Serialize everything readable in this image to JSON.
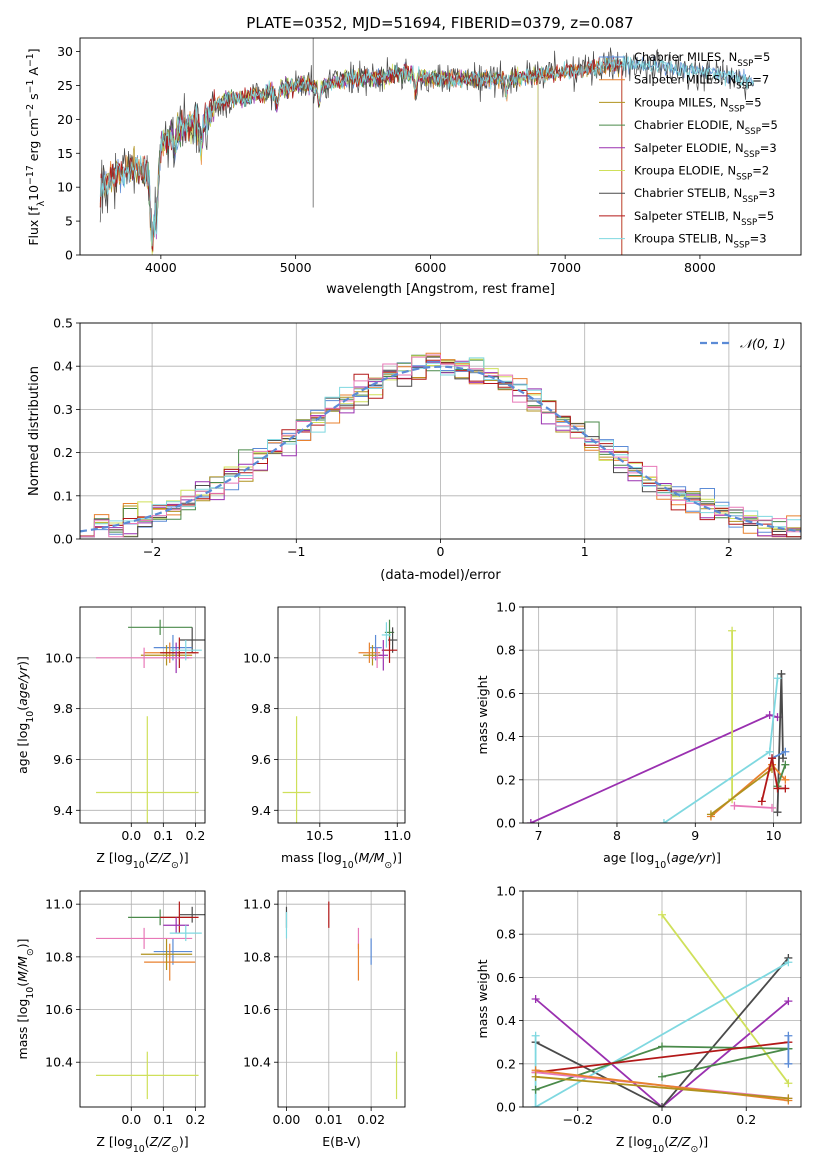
{
  "figure": {
    "title": "PLATE=0352, MJD=51694, FIBERID=0379, z=0.087"
  },
  "colors": {
    "chabrier_miles": "#5b8bd6",
    "salpeter_miles": "#e8812f",
    "kroupa_miles": "#b0921e",
    "chabrier_elodie": "#4a8a4a",
    "salpeter_elodie": "#9a30b0",
    "kroupa_elodie": "#cfe05a",
    "chabrier_stelib": "#4a4a4a",
    "salpeter_stelib": "#b31818",
    "kroupa_stelib": "#7fd8e0",
    "pink": "#e878b8",
    "gaussian": "#5b8bd6"
  },
  "chart_data": [
    {
      "id": "spectrum",
      "type": "line",
      "title": "PLATE=0352, MJD=51694, FIBERID=0379, z=0.087",
      "xlabel": "wavelength [Angstrom, rest frame]",
      "ylabel": "Flux [f_λ 10^-17 erg cm^-2 s^-1 A^-1]",
      "xlim": [
        3400,
        8750
      ],
      "ylim": [
        0,
        32
      ],
      "xticks": [
        4000,
        5000,
        6000,
        7000,
        8000
      ],
      "yticks": [
        0,
        5,
        10,
        15,
        20,
        25,
        30
      ],
      "grid": false,
      "legend_position": "right",
      "continuum_anchors": {
        "x": [
          3500,
          3600,
          3700,
          3800,
          3900,
          3950,
          4000,
          4100,
          4200,
          4300,
          4400,
          4500,
          4600,
          4800,
          5000,
          5200,
          5400,
          5600,
          5800,
          6000,
          6200,
          6400,
          6600,
          6800,
          7000,
          7200,
          7400,
          7600,
          7800,
          8000,
          8200,
          8400
        ],
        "y": [
          9,
          11,
          12,
          13,
          12,
          6,
          16,
          18,
          19,
          19,
          22,
          23,
          23,
          24,
          25,
          25,
          26,
          26,
          27,
          26,
          26,
          26,
          26,
          26.5,
          27,
          27.5,
          28,
          28,
          27.5,
          27,
          26.5,
          25.5
        ]
      },
      "legend": [
        {
          "label": "Chabrier MILES",
          "nssp": "5",
          "color_key": "chabrier_miles"
        },
        {
          "label": "Salpeter MILES",
          "nssp": "7",
          "color_key": "salpeter_miles"
        },
        {
          "label": "Kroupa MILES",
          "nssp": "5",
          "color_key": "kroupa_miles"
        },
        {
          "label": "Chabrier ELODIE",
          "nssp": "5",
          "color_key": "chabrier_elodie"
        },
        {
          "label": "Salpeter ELODIE",
          "nssp": "3",
          "color_key": "salpeter_elodie"
        },
        {
          "label": "Kroupa ELODIE",
          "nssp": "2",
          "color_key": "kroupa_elodie"
        },
        {
          "label": "Chabrier STELIB",
          "nssp": "3",
          "color_key": "chabrier_stelib"
        },
        {
          "label": "Salpeter STELIB",
          "nssp": "5",
          "color_key": "salpeter_stelib"
        },
        {
          "label": "Kroupa STELIB",
          "nssp": "3",
          "color_key": "kroupa_stelib"
        }
      ],
      "model_ranges": [
        {
          "color_key": "chabrier_miles",
          "x": [
            3550,
            8400
          ]
        },
        {
          "color_key": "salpeter_miles",
          "x": [
            3550,
            7420
          ]
        },
        {
          "color_key": "kroupa_miles",
          "x": [
            3550,
            7420
          ]
        },
        {
          "color_key": "chabrier_elodie",
          "x": [
            3900,
            6800
          ]
        },
        {
          "color_key": "salpeter_elodie",
          "x": [
            3900,
            6800
          ]
        },
        {
          "color_key": "kroupa_elodie",
          "x": [
            3900,
            6800
          ]
        },
        {
          "color_key": "chabrier_stelib",
          "x": [
            3550,
            8400
          ]
        },
        {
          "color_key": "salpeter_stelib",
          "x": [
            3550,
            7420
          ]
        },
        {
          "color_key": "kroupa_stelib",
          "x": [
            3550,
            8400
          ]
        }
      ]
    },
    {
      "id": "residuals",
      "type": "area",
      "xlabel": "(data-model)/error",
      "ylabel": "Normed distribution",
      "xlim": [
        -2.5,
        2.5
      ],
      "ylim": [
        0,
        0.5
      ],
      "xticks": [
        -2,
        -1,
        0,
        1,
        2
      ],
      "yticks": [
        0.0,
        0.1,
        0.2,
        0.3,
        0.4,
        0.5
      ],
      "grid": true,
      "legend": [
        {
          "label": "𝒩(0, 1)",
          "color_key": "gaussian",
          "style": "dashed"
        }
      ],
      "bin_width": 0.1,
      "series_colors": [
        "chabrier_miles",
        "salpeter_miles",
        "kroupa_miles",
        "chabrier_elodie",
        "salpeter_elodie",
        "kroupa_elodie",
        "chabrier_stelib",
        "salpeter_stelib",
        "kroupa_stelib",
        "pink"
      ]
    },
    {
      "id": "age_vs_Z",
      "type": "scatter",
      "xlabel": "Z [log10(Z/Z⊙)]",
      "ylabel": "age [log10(age/yr)]",
      "xlim": [
        -0.16,
        0.23
      ],
      "ylim": [
        9.35,
        10.2
      ],
      "xticks": [
        0.0,
        0.1,
        0.2
      ],
      "yticks": [
        9.4,
        9.6,
        9.8,
        10.0
      ],
      "grid": true,
      "points": [
        {
          "x": 0.05,
          "y": 9.47,
          "xerr": 0.16,
          "yerr": 0.3,
          "color_key": "kroupa_elodie"
        },
        {
          "x": 0.09,
          "y": 10.12,
          "xerr": 0.1,
          "yerr": 0.03,
          "color_key": "chabrier_elodie"
        },
        {
          "x": 0.19,
          "y": 10.07,
          "xerr": 0.04,
          "yerr": 0.05,
          "color_key": "chabrier_stelib"
        },
        {
          "x": 0.13,
          "y": 10.04,
          "xerr": 0.06,
          "yerr": 0.05,
          "color_key": "chabrier_miles"
        },
        {
          "x": 0.12,
          "y": 10.02,
          "xerr": 0.08,
          "yerr": 0.04,
          "color_key": "salpeter_miles"
        },
        {
          "x": 0.11,
          "y": 10.01,
          "xerr": 0.08,
          "yerr": 0.04,
          "color_key": "kroupa_miles"
        },
        {
          "x": 0.15,
          "y": 10.02,
          "xerr": 0.06,
          "yerr": 0.06,
          "color_key": "salpeter_stelib"
        },
        {
          "x": 0.14,
          "y": 10.0,
          "xerr": 0.04,
          "yerr": 0.06,
          "color_key": "salpeter_elodie"
        },
        {
          "x": 0.04,
          "y": 10.0,
          "xerr": 0.15,
          "yerr": 0.04,
          "color_key": "pink"
        },
        {
          "x": 0.17,
          "y": 10.03,
          "xerr": 0.05,
          "yerr": 0.04,
          "color_key": "kroupa_stelib"
        }
      ]
    },
    {
      "id": "age_vs_mass",
      "type": "scatter",
      "xlabel": "mass [log10(M/M⊙)]",
      "ylabel": "",
      "xlim": [
        10.23,
        11.05
      ],
      "ylim": [
        9.35,
        10.2
      ],
      "xticks": [
        10.5,
        11.0
      ],
      "yticks": [
        9.4,
        9.6,
        9.8,
        10.0
      ],
      "grid": true,
      "points": [
        {
          "x": 10.35,
          "y": 9.47,
          "xerr": 0.09,
          "yerr": 0.3,
          "color_key": "kroupa_elodie"
        },
        {
          "x": 10.95,
          "y": 10.1,
          "xerr": 0.03,
          "yerr": 0.05,
          "color_key": "chabrier_elodie"
        },
        {
          "x": 10.97,
          "y": 10.07,
          "xerr": 0.03,
          "yerr": 0.05,
          "color_key": "chabrier_stelib"
        },
        {
          "x": 10.86,
          "y": 10.04,
          "xerr": 0.04,
          "yerr": 0.05,
          "color_key": "chabrier_miles"
        },
        {
          "x": 10.82,
          "y": 10.02,
          "xerr": 0.07,
          "yerr": 0.04,
          "color_key": "salpeter_miles"
        },
        {
          "x": 10.84,
          "y": 10.01,
          "xerr": 0.06,
          "yerr": 0.04,
          "color_key": "kroupa_miles"
        },
        {
          "x": 10.95,
          "y": 10.03,
          "xerr": 0.05,
          "yerr": 0.05,
          "color_key": "salpeter_stelib"
        },
        {
          "x": 10.91,
          "y": 10.01,
          "xerr": 0.03,
          "yerr": 0.06,
          "color_key": "salpeter_elodie"
        },
        {
          "x": 10.87,
          "y": 10.0,
          "xerr": 0.04,
          "yerr": 0.04,
          "color_key": "pink"
        },
        {
          "x": 10.93,
          "y": 10.09,
          "xerr": 0.03,
          "yerr": 0.05,
          "color_key": "kroupa_stelib"
        }
      ]
    },
    {
      "id": "weight_vs_age",
      "type": "line",
      "xlabel": "age [log10(age/yr)]",
      "ylabel": "mass weight",
      "xlim": [
        6.8,
        10.35
      ],
      "ylim": [
        0,
        1.0
      ],
      "xticks": [
        7,
        8,
        9,
        10
      ],
      "yticks": [
        0.0,
        0.2,
        0.4,
        0.6,
        0.8,
        1.0
      ],
      "grid": true,
      "series": [
        {
          "color_key": "salpeter_elodie",
          "x": [
            6.9,
            9.95,
            10.05
          ],
          "y": [
            0.0,
            0.5,
            0.49
          ]
        },
        {
          "color_key": "kroupa_elodie",
          "x": [
            9.47,
            9.47
          ],
          "y": [
            0.89,
            0.11
          ]
        },
        {
          "color_key": "chabrier_stelib",
          "x": [
            10.05,
            10.1,
            10.12
          ],
          "y": [
            0.05,
            0.69,
            0.3
          ]
        },
        {
          "color_key": "kroupa_stelib",
          "x": [
            8.6,
            9.95,
            10.05
          ],
          "y": [
            0.0,
            0.33,
            0.67
          ]
        },
        {
          "color_key": "chabrier_miles",
          "x": [
            9.98,
            10.15
          ],
          "y": [
            0.3,
            0.33
          ]
        },
        {
          "color_key": "salpeter_miles",
          "x": [
            9.2,
            9.98,
            10.15
          ],
          "y": [
            0.03,
            0.27,
            0.2
          ]
        },
        {
          "color_key": "pink",
          "x": [
            9.5,
            9.98
          ],
          "y": [
            0.08,
            0.07
          ]
        },
        {
          "color_key": "kroupa_miles",
          "x": [
            9.2,
            9.98
          ],
          "y": [
            0.04,
            0.25
          ]
        },
        {
          "color_key": "chabrier_elodie",
          "x": [
            10.05,
            10.15
          ],
          "y": [
            0.17,
            0.27
          ]
        },
        {
          "color_key": "salpeter_stelib",
          "x": [
            9.85,
            9.98,
            10.05,
            10.15
          ],
          "y": [
            0.1,
            0.3,
            0.16,
            0.16
          ]
        }
      ]
    },
    {
      "id": "mass_vs_Z",
      "type": "scatter",
      "xlabel": "Z [log10(Z/Z⊙)]",
      "ylabel": "mass [log10(M/M⊙)]",
      "xlim": [
        -0.16,
        0.23
      ],
      "ylim": [
        10.23,
        11.05
      ],
      "xticks": [
        0.0,
        0.1,
        0.2
      ],
      "yticks": [
        10.4,
        10.6,
        10.8,
        11.0
      ],
      "grid": true,
      "points": [
        {
          "x": 0.05,
          "y": 10.35,
          "xerr": 0.16,
          "yerr": 0.09,
          "color_key": "kroupa_elodie"
        },
        {
          "x": 0.09,
          "y": 10.95,
          "xerr": 0.1,
          "yerr": 0.03,
          "color_key": "chabrier_elodie"
        },
        {
          "x": 0.19,
          "y": 10.96,
          "xerr": 0.04,
          "yerr": 0.03,
          "color_key": "chabrier_stelib"
        },
        {
          "x": 0.13,
          "y": 10.82,
          "xerr": 0.06,
          "yerr": 0.05,
          "color_key": "chabrier_miles"
        },
        {
          "x": 0.12,
          "y": 10.78,
          "xerr": 0.08,
          "yerr": 0.07,
          "color_key": "salpeter_miles"
        },
        {
          "x": 0.11,
          "y": 10.81,
          "xerr": 0.08,
          "yerr": 0.06,
          "color_key": "kroupa_miles"
        },
        {
          "x": 0.15,
          "y": 10.95,
          "xerr": 0.06,
          "yerr": 0.06,
          "color_key": "salpeter_stelib"
        },
        {
          "x": 0.14,
          "y": 10.92,
          "xerr": 0.04,
          "yerr": 0.03,
          "color_key": "salpeter_elodie"
        },
        {
          "x": 0.04,
          "y": 10.87,
          "xerr": 0.15,
          "yerr": 0.04,
          "color_key": "pink"
        },
        {
          "x": 0.17,
          "y": 10.89,
          "xerr": 0.05,
          "yerr": 0.03,
          "color_key": "kroupa_stelib"
        }
      ]
    },
    {
      "id": "mass_vs_ebv",
      "type": "scatter",
      "xlabel": "E(B-V)",
      "ylabel": "",
      "xlim": [
        -0.002,
        0.028
      ],
      "ylim": [
        10.23,
        11.05
      ],
      "xticks": [
        0.0,
        0.01,
        0.02
      ],
      "yticks": [
        10.4,
        10.6,
        10.8,
        11.0
      ],
      "grid": true,
      "points": [
        {
          "x": 0.0,
          "y": 10.95,
          "xerr": 0,
          "yerr": 0.04,
          "color_key": "chabrier_stelib"
        },
        {
          "x": 0.0,
          "y": 10.92,
          "xerr": 0,
          "yerr": 0.05,
          "color_key": "kroupa_stelib"
        },
        {
          "x": 0.01,
          "y": 10.96,
          "xerr": 0,
          "yerr": 0.05,
          "color_key": "salpeter_stelib"
        },
        {
          "x": 0.017,
          "y": 10.87,
          "xerr": 0,
          "yerr": 0.04,
          "color_key": "pink"
        },
        {
          "x": 0.017,
          "y": 10.78,
          "xerr": 0,
          "yerr": 0.07,
          "color_key": "salpeter_miles"
        },
        {
          "x": 0.02,
          "y": 10.82,
          "xerr": 0,
          "yerr": 0.05,
          "color_key": "chabrier_miles"
        },
        {
          "x": 0.026,
          "y": 10.35,
          "xerr": 0,
          "yerr": 0.09,
          "color_key": "kroupa_elodie"
        }
      ]
    },
    {
      "id": "weight_vs_Z",
      "type": "line",
      "xlabel": "Z [log10(Z/Z⊙)]",
      "ylabel": "mass weight",
      "xlim": [
        -0.33,
        0.33
      ],
      "ylim": [
        0,
        1.0
      ],
      "xticks": [
        -0.2,
        0.0,
        0.2
      ],
      "yticks": [
        0.0,
        0.2,
        0.4,
        0.6,
        0.8,
        1.0
      ],
      "grid": true,
      "series": [
        {
          "color_key": "salpeter_elodie",
          "x": [
            -0.3,
            0.0,
            0.3
          ],
          "y": [
            0.5,
            0.0,
            0.49
          ]
        },
        {
          "color_key": "kroupa_elodie",
          "x": [
            0.0,
            0.3
          ],
          "y": [
            0.89,
            0.11
          ]
        },
        {
          "color_key": "chabrier_stelib",
          "x": [
            -0.3,
            0.0,
            0.3
          ],
          "y": [
            0.3,
            0.0,
            0.69
          ]
        },
        {
          "color_key": "kroupa_stelib",
          "x": [
            -0.3,
            0.3
          ],
          "y": [
            0.0,
            0.67
          ]
        },
        {
          "color_key": "kroupa_stelib",
          "x": [
            -0.3,
            -0.3
          ],
          "y": [
            0.33,
            0.0
          ]
        },
        {
          "color_key": "chabrier_elodie",
          "x": [
            -0.3,
            0.0,
            0.3
          ],
          "y": [
            0.08,
            0.28,
            0.27
          ]
        },
        {
          "color_key": "chabrier_elodie",
          "x": [
            0.0,
            0.3
          ],
          "y": [
            0.14,
            0.27
          ]
        },
        {
          "color_key": "salpeter_stelib",
          "x": [
            -0.3,
            0.3
          ],
          "y": [
            0.16,
            0.3
          ]
        },
        {
          "color_key": "pink",
          "x": [
            -0.3,
            0.3
          ],
          "y": [
            0.16,
            0.04
          ]
        },
        {
          "color_key": "salpeter_miles",
          "x": [
            -0.3,
            0.3
          ],
          "y": [
            0.17,
            0.03
          ]
        },
        {
          "color_key": "chabrier_miles",
          "x": [
            0.3,
            0.3
          ],
          "y": [
            0.33,
            0.2
          ]
        },
        {
          "color_key": "kroupa_miles",
          "x": [
            -0.3,
            0.3
          ],
          "y": [
            0.14,
            0.04
          ]
        }
      ]
    }
  ]
}
